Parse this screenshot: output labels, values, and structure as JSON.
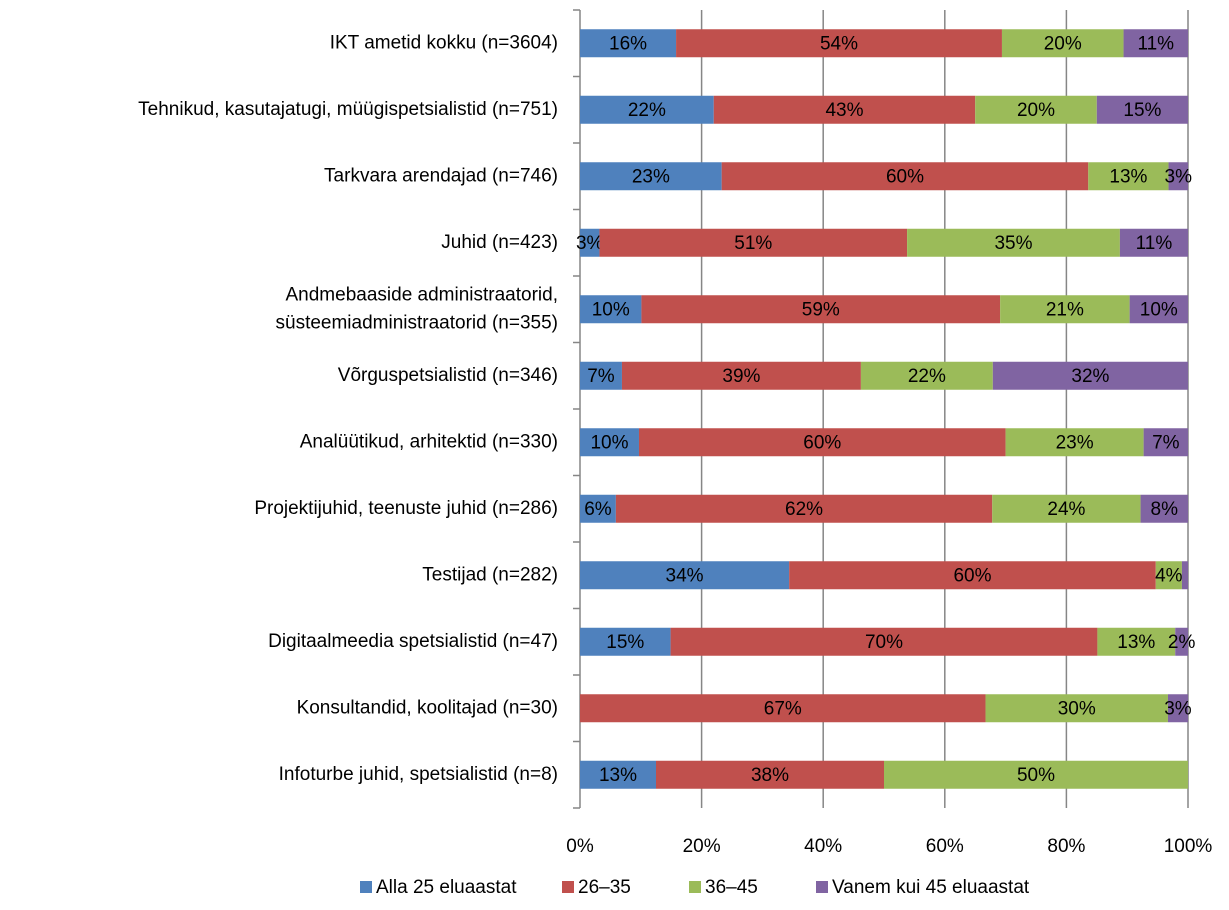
{
  "chart_data": {
    "type": "stacked_barh",
    "categories": [
      "IKT ametid kokku (n=3604)",
      "Tehnikud, kasutajatugi, müügispetsialistid (n=751)",
      "Tarkvara arendajad (n=746)",
      "Juhid (n=423)",
      "Andmebaaside administraatorid,\nsüsteemiadministraatorid (n=355)",
      "Võrguspetsialistid (n=346)",
      "Analüütikud, arhitektid (n=330)",
      "Projektijuhid, teenuste juhid (n=286)",
      "Testijad (n=282)",
      "Digitaalmeedia spetsialistid (n=47)",
      "Konsultandid, koolitajad (n=30)",
      "Infoturbe juhid, spetsialistid (n=8)"
    ],
    "series": [
      {
        "name": "Alla 25 eluaastat",
        "color": "#4f81bd",
        "values": [
          15.8,
          22.0,
          23.3,
          3.2,
          10.1,
          6.9,
          9.7,
          5.9,
          34.4,
          14.9,
          0,
          12.5
        ],
        "value_labels": [
          "16%",
          "22%",
          "23%",
          "3%",
          "10%",
          "7%",
          "10%",
          "6%",
          "34%",
          "15%",
          null,
          "13%"
        ]
      },
      {
        "name": "26–35",
        "color": "#c0504d",
        "values": [
          53.6,
          43.0,
          60.3,
          50.6,
          59.0,
          39.3,
          60.3,
          61.9,
          60.3,
          70.2,
          66.7,
          37.5
        ],
        "value_labels": [
          "54%",
          "43%",
          "60%",
          "51%",
          "59%",
          "39%",
          "60%",
          "62%",
          "60%",
          "70%",
          "67%",
          "38%"
        ]
      },
      {
        "name": "36–45",
        "color": "#9bbb59",
        "values": [
          20.0,
          20.0,
          13.2,
          35.0,
          21.3,
          21.7,
          22.7,
          24.4,
          4.3,
          12.8,
          30.0,
          50.0
        ],
        "value_labels": [
          "20%",
          "20%",
          "13%",
          "35%",
          "21%",
          "22%",
          "23%",
          "24%",
          "4%",
          "13%",
          "30%",
          "50%"
        ]
      },
      {
        "name": "Vanem kui 45 eluaastat",
        "color": "#8064a2",
        "values": [
          10.6,
          15.0,
          3.2,
          11.2,
          9.6,
          32.1,
          7.3,
          7.8,
          1.0,
          2.1,
          3.3,
          0
        ],
        "value_labels": [
          "11%",
          "15%",
          "3%",
          "11%",
          "10%",
          "32%",
          "7%",
          "8%",
          null,
          "2%",
          "3%",
          null
        ]
      }
    ],
    "xlim": [
      0,
      100
    ],
    "xticks": [
      {
        "value": 0,
        "label": "0%"
      },
      {
        "value": 20,
        "label": "20%"
      },
      {
        "value": 40,
        "label": "40%"
      },
      {
        "value": 60,
        "label": "60%"
      },
      {
        "value": 80,
        "label": "80%"
      },
      {
        "value": 100,
        "label": "100%"
      }
    ],
    "grid": true,
    "legend": "bottom"
  }
}
